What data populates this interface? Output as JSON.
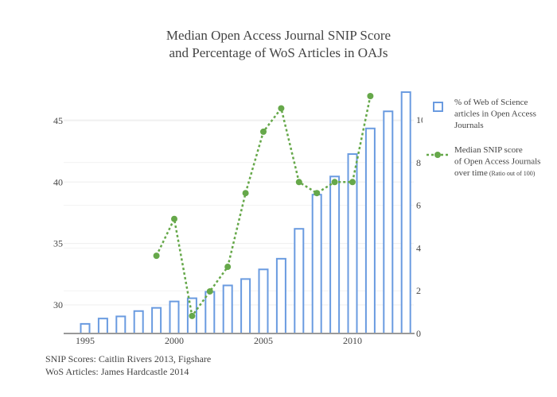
{
  "chart_data": {
    "type": "bar+line",
    "title": [
      "Median Open Access Journal SNIP Score",
      "and Percentage of WoS Articles in OAJs"
    ],
    "x": [
      1995,
      1996,
      1997,
      1998,
      1999,
      2000,
      2001,
      2002,
      2003,
      2004,
      2005,
      2006,
      2007,
      2008,
      2009,
      2010,
      2011,
      2012,
      2013
    ],
    "x_ticks": [
      1995,
      2000,
      2005,
      2010
    ],
    "series": [
      {
        "name": "% of Web of Science articles in Open Access Journals",
        "type": "bar",
        "axis": "right",
        "color": "#6a9be0",
        "x": [
          1995,
          1996,
          1997,
          1998,
          1999,
          2000,
          2001,
          2002,
          2003,
          2004,
          2005,
          2006,
          2007,
          2008,
          2009,
          2010,
          2011,
          2012,
          2013
        ],
        "values": [
          0.45,
          0.7,
          0.8,
          1.05,
          1.2,
          1.5,
          1.65,
          1.95,
          2.25,
          2.55,
          3.0,
          3.5,
          4.9,
          6.5,
          7.35,
          8.4,
          9.6,
          10.4,
          11.3
        ]
      },
      {
        "name": "Median SNIP score of Open Access Journals over time",
        "name_note": "(Ratio out of 100)",
        "type": "line",
        "axis": "left",
        "color": "#66a84a",
        "dash": "dotted",
        "x": [
          1999,
          2000,
          2001,
          2002,
          2003,
          2004,
          2005,
          2006,
          2007,
          2008,
          2009,
          2010,
          2011
        ],
        "values": [
          34.0,
          37.0,
          29.1,
          31.1,
          33.1,
          39.1,
          44.1,
          46.0,
          40.0,
          39.1,
          40.0,
          40.0,
          47.0
        ]
      }
    ],
    "y_left": {
      "ticks": [
        30,
        35,
        40,
        45
      ],
      "range": [
        27.7,
        49
      ]
    },
    "y_right": {
      "ticks": [
        0,
        2,
        4,
        6,
        8,
        10
      ],
      "range": [
        0,
        11.4
      ]
    },
    "legend": {
      "placement": "right",
      "bar_lines": [
        "% of Web of Science",
        "articles in Open Access",
        "Journals"
      ],
      "line_lines": [
        "Median SNIP score",
        "of Open Access  Journals",
        "over time"
      ],
      "line_note": "(Ratio out of 100)"
    },
    "grid": true,
    "annotations": [
      "SNIP Scores: Caitlin Rivers 2013, Figshare",
      "WoS Articles: James Hardcastle 2014"
    ]
  }
}
